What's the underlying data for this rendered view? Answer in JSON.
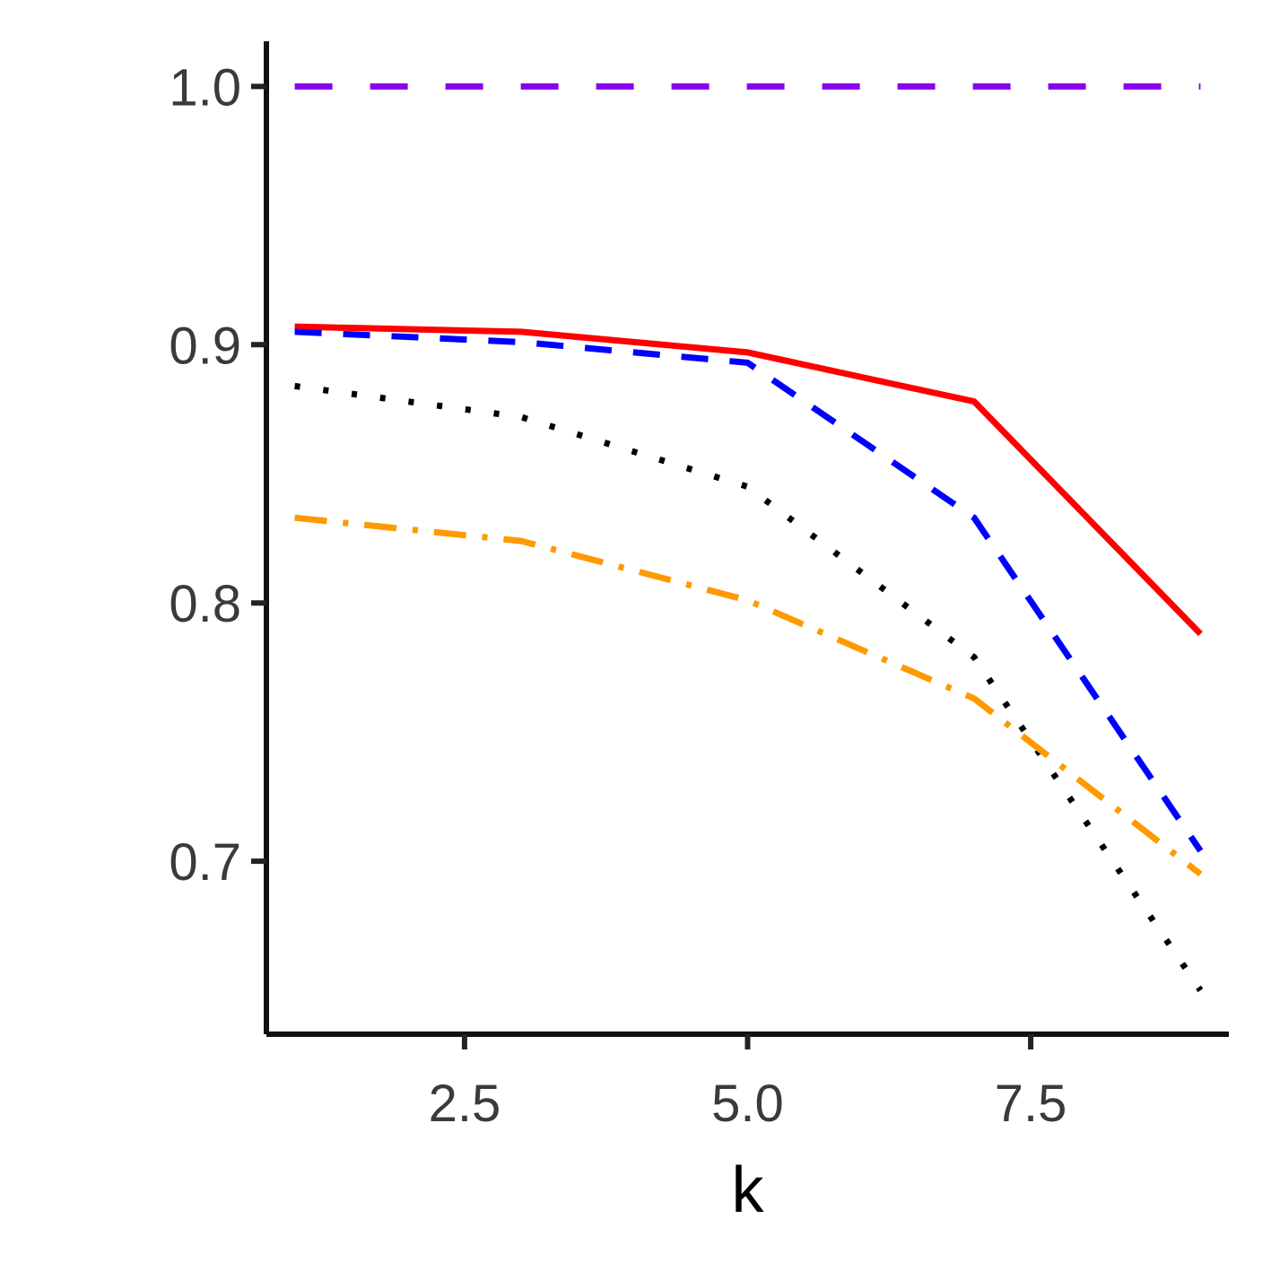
{
  "chart_data": {
    "type": "line",
    "title": "",
    "xlabel": "k",
    "ylabel": "",
    "xlim": [
      0.75,
      9.25
    ],
    "ylim": [
      0.633,
      1.0175
    ],
    "x_ticks": [
      2.5,
      5.0,
      7.5
    ],
    "x_tick_labels": [
      "2.5",
      "5.0",
      "7.5"
    ],
    "y_ticks": [
      0.7,
      0.8,
      0.9,
      1.0
    ],
    "y_tick_labels": [
      "0.7",
      "0.8",
      "0.9",
      "1.0"
    ],
    "grid": false,
    "legend": "none",
    "x": [
      1,
      3,
      5,
      7,
      9
    ],
    "series": [
      {
        "color": "#8B00EE",
        "dash": "long-dash",
        "values": [
          1.0,
          1.0,
          1.0,
          1.0,
          1.0
        ]
      },
      {
        "color": "#FF0000",
        "dash": "solid",
        "values": [
          0.907,
          0.905,
          0.897,
          0.878,
          0.788
        ]
      },
      {
        "color": "#0000FF",
        "dash": "dashed",
        "values": [
          0.905,
          0.901,
          0.893,
          0.833,
          0.704
        ]
      },
      {
        "color": "#000000",
        "dash": "dotted",
        "values": [
          0.884,
          0.872,
          0.845,
          0.779,
          0.65
        ]
      },
      {
        "color": "#FF9900",
        "dash": "dash-dot",
        "values": [
          0.833,
          0.824,
          0.801,
          0.763,
          0.695
        ]
      }
    ]
  }
}
